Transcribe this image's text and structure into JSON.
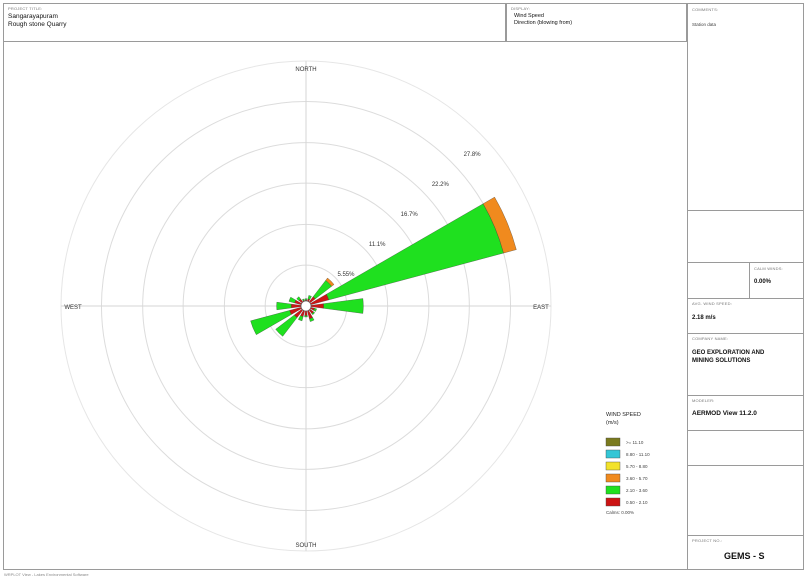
{
  "header": {
    "project_tag": "PROJECT TITLE:",
    "project_line1": "Sangarayapuram",
    "project_line2": "Rough stone Quarry",
    "display_tag": "DISPLAY:",
    "display_line1": "Wind Speed",
    "display_line2": "Direction (blowing from)"
  },
  "sidebar": {
    "comments_tag": "COMMENTS:",
    "comments_value": "Station data",
    "calm_tag": "CALM WINDS:",
    "calm_value": "0.00%",
    "avg_speed_tag": "AVG. WIND SPEED:",
    "avg_speed_value": "2.18 m/s",
    "company_tag": "COMPANY NAME:",
    "company_line1": "GEO EXPLORATION AND",
    "company_line2": "MINING SOLUTIONS",
    "model_tag": "MODELER:",
    "model_value": "AERMOD View 11.2.0",
    "project_no_tag": "PROJECT NO.:",
    "project_no_value": "GEMS - S"
  },
  "footer": "WRPLOT View - Lakes Environmental Software",
  "chart_data": {
    "type": "windrose",
    "compass": {
      "north": "NORTH",
      "south": "SOUTH",
      "east": "EAST",
      "west": "WEST"
    },
    "ring_labels": [
      "5.55%",
      "11.1%",
      "16.7%",
      "22.2%",
      "27.8%"
    ],
    "ring_values": [
      5.55,
      11.1,
      16.7,
      22.2,
      27.8
    ],
    "rmax": 33.3,
    "legend_title_line1": "WIND SPEED",
    "legend_title_line2": "(m/s)",
    "legend": [
      {
        "label": ">= 11.10",
        "color": "#7a7a1e"
      },
      {
        "label": "8.80 - 11.10",
        "color": "#33c6d6"
      },
      {
        "label": "5.70 - 8.80",
        "color": "#f2e22a"
      },
      {
        "label": "3.60 - 5.70",
        "color": "#f08a1e"
      },
      {
        "label": "2.10 - 3.60",
        "color": "#1fe01f"
      },
      {
        "label": "0.50 - 2.10",
        "color": "#cc1414"
      }
    ],
    "calms_label": "Calms: 0.00%",
    "directions": [
      0,
      22.5,
      45,
      67.5,
      90,
      112.5,
      135,
      157.5,
      180,
      202.5,
      225,
      247.5,
      270,
      292.5,
      315,
      337.5
    ],
    "series": [
      {
        "name": "0.50 - 2.10",
        "color": "#cc1414",
        "values": [
          0.8,
          1.0,
          1.6,
          3.2,
          2.4,
          1.2,
          1.3,
          1.8,
          1.3,
          1.5,
          2.0,
          2.3,
          2.0,
          1.6,
          1.2,
          0.8
        ]
      },
      {
        "name": "2.10 - 3.60",
        "color": "#1fe01f",
        "values": [
          0.2,
          0.5,
          2.8,
          24.6,
          5.4,
          0.3,
          0.2,
          0.4,
          0.2,
          0.6,
          3.2,
          5.5,
          2.0,
          0.8,
          0.4,
          0.2
        ]
      },
      {
        "name": "3.60 - 5.70",
        "color": "#f08a1e",
        "values": [
          0,
          0,
          0.4,
          1.8,
          0,
          0,
          0,
          0,
          0,
          0,
          0,
          0,
          0,
          0,
          0,
          0
        ]
      }
    ]
  }
}
